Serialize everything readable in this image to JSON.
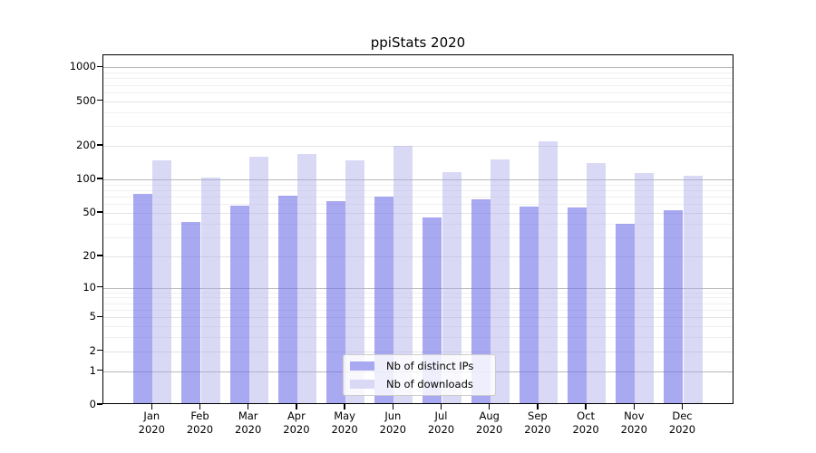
{
  "title": "ppiStats 2020",
  "chart_data": {
    "type": "bar",
    "title": "ppiStats 2020",
    "categories": [
      "Jan 2020",
      "Feb 2020",
      "Mar 2020",
      "Apr 2020",
      "May 2020",
      "Jun 2020",
      "Jul 2020",
      "Aug 2020",
      "Sep 2020",
      "Oct 2020",
      "Nov 2020",
      "Dec 2020"
    ],
    "series": [
      {
        "name": "Nb of distinct IPs",
        "color": "rgba(112,112,232,0.6)",
        "legend_color": "#a9a9f1",
        "values": [
          72,
          40,
          56,
          69,
          62,
          67,
          44,
          64,
          55,
          54,
          38,
          51
        ]
      },
      {
        "name": "Nb of downloads",
        "color": "rgba(171,171,235,0.45)",
        "legend_color": "#d9d9f6",
        "values": [
          144,
          101,
          153,
          164,
          143,
          191,
          112,
          146,
          210,
          135,
          110,
          105
        ]
      }
    ],
    "xlabel": "",
    "ylabel": "",
    "y_scale": "log10(1+x)",
    "y_ticks": [
      0,
      1,
      2,
      5,
      10,
      20,
      50,
      100,
      200,
      500,
      1000
    ],
    "y_minor_ticks": [
      3,
      4,
      6,
      7,
      8,
      9,
      30,
      40,
      60,
      70,
      80,
      90,
      300,
      400,
      600,
      700,
      800,
      900
    ],
    "ylim": [
      0,
      1294
    ],
    "grid": "on",
    "legend_position": "lower center"
  }
}
